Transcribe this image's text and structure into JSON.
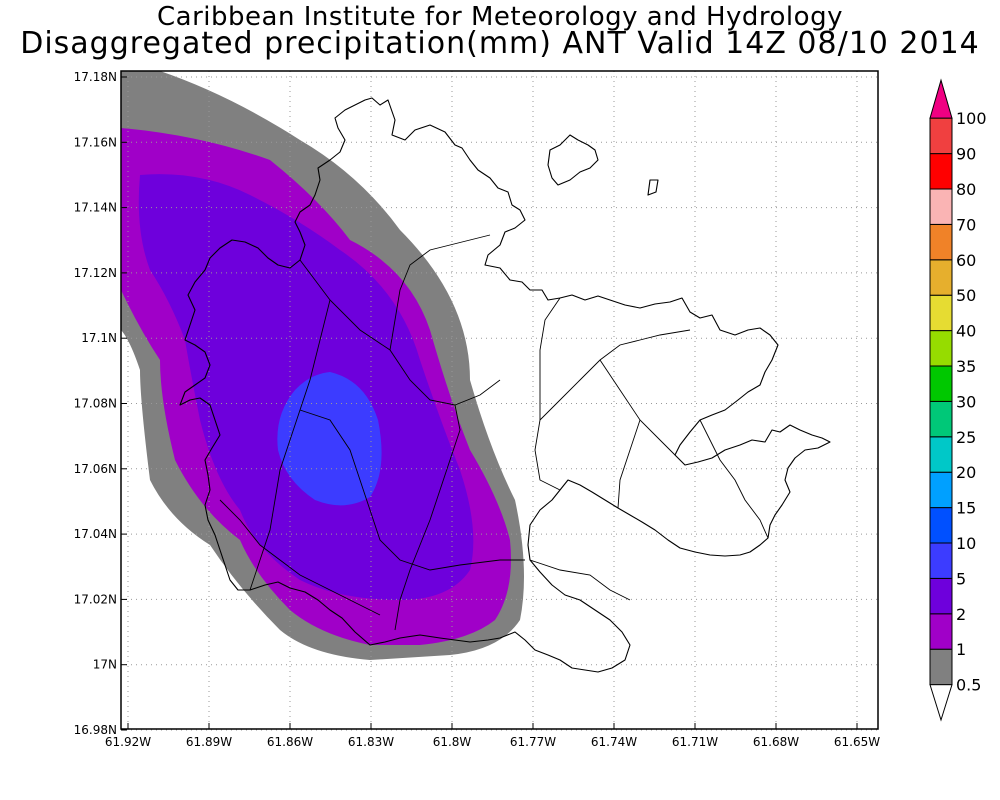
{
  "title": {
    "line1": "Caribbean Institute for Meteorology and Hydrology",
    "line2": "Disaggregated precipitation(mm) ANT Valid 14Z 08/10 2014"
  },
  "map": {
    "lon_range": [
      -61.93,
      -61.64
    ],
    "lat_range": [
      16.98,
      17.18
    ],
    "lon_ticks": [
      "61.92W",
      "61.89W",
      "61.86W",
      "61.83W",
      "61.8W",
      "61.77W",
      "61.74W",
      "61.71W",
      "61.68W",
      "61.65W"
    ],
    "lat_ticks": [
      "17.18N",
      "17.16N",
      "17.14N",
      "17.12N",
      "17.1N",
      "17.08N",
      "17.06N",
      "17.04N",
      "17.02N",
      "17N",
      "16.98N"
    ],
    "grid": true,
    "grid_style": "dotted"
  },
  "colorbar": {
    "orientation": "vertical",
    "placement": "right",
    "bins": [
      {
        "label": "0.5",
        "color": "#ffffff"
      },
      {
        "label": "1",
        "color": "#808080"
      },
      {
        "label": "2",
        "color": "#a000c8"
      },
      {
        "label": "5",
        "color": "#6e00dc"
      },
      {
        "label": "10",
        "color": "#3c3cff"
      },
      {
        "label": "15",
        "color": "#0050ff"
      },
      {
        "label": "20",
        "color": "#00a0ff"
      },
      {
        "label": "25",
        "color": "#00c8c8"
      },
      {
        "label": "30",
        "color": "#00c878"
      },
      {
        "label": "35",
        "color": "#00c800"
      },
      {
        "label": "40",
        "color": "#96dc00"
      },
      {
        "label": "50",
        "color": "#e6dc32"
      },
      {
        "label": "60",
        "color": "#e6af2d"
      },
      {
        "label": "70",
        "color": "#f08228"
      },
      {
        "label": "80",
        "color": "#fab4b4"
      },
      {
        "label": "90",
        "color": "#ff0000"
      },
      {
        "label": "100",
        "color": "#f04040"
      }
    ],
    "overflow_color": "#f00082"
  },
  "precip_levels": {
    "ge_0_5": "#808080",
    "ge_1": "#a000c8",
    "ge_2": "#6e00dc",
    "ge_5": "#3c3cff"
  }
}
